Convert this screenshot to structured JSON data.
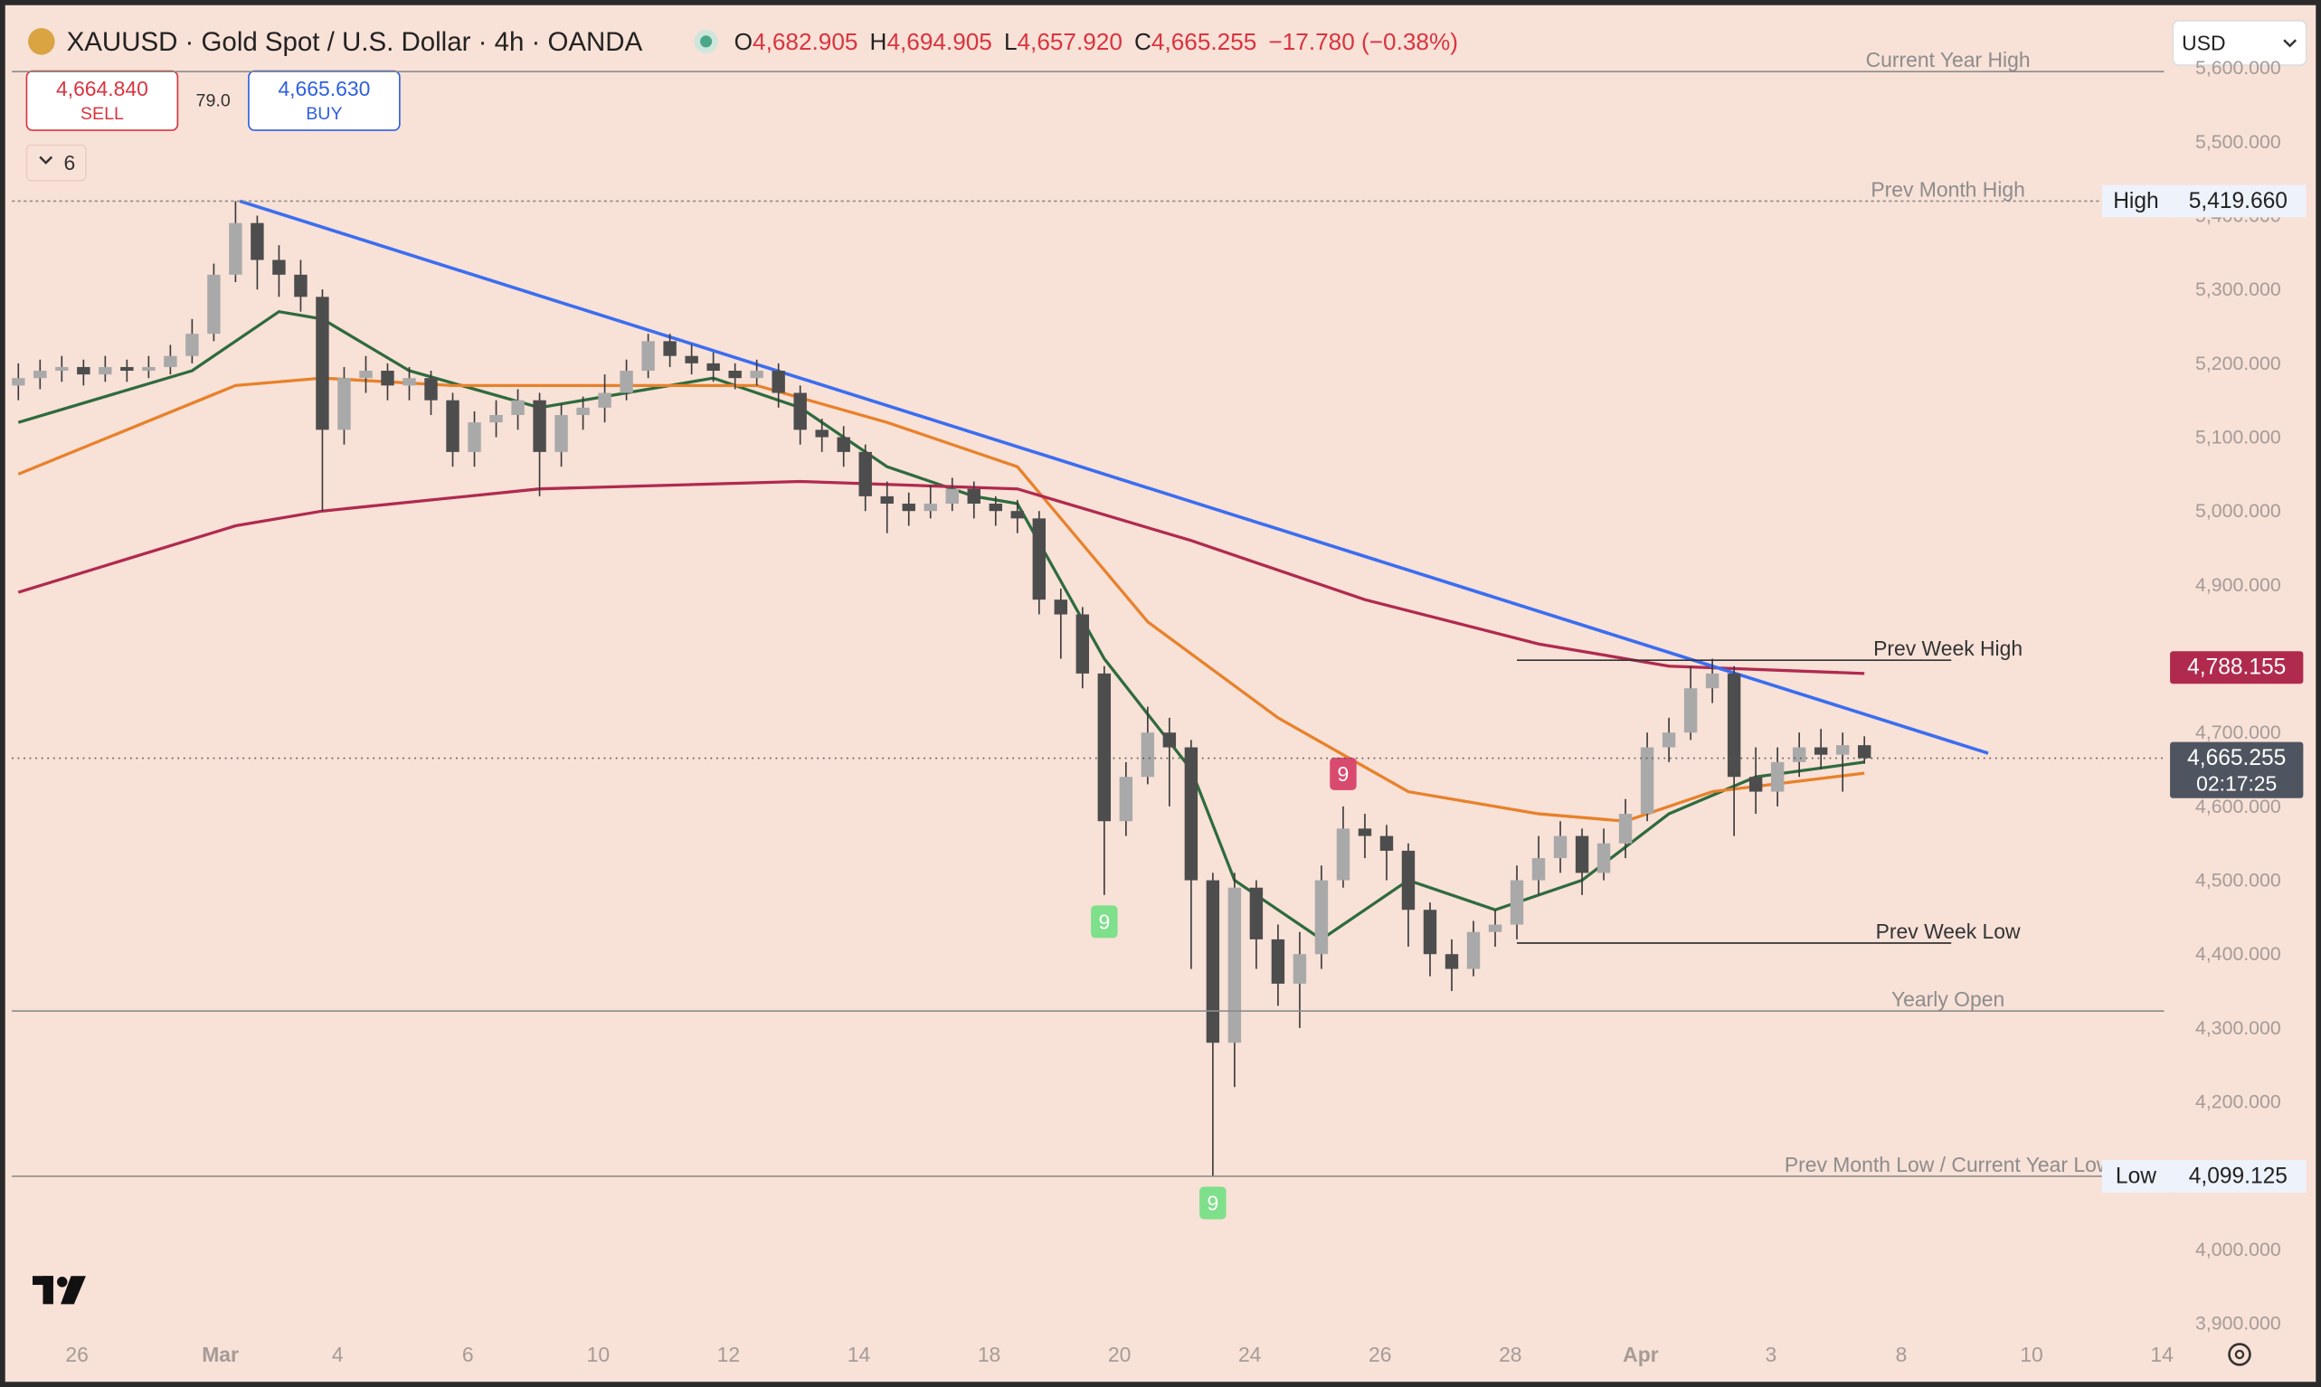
{
  "header": {
    "symbol": "XAUUSD · Gold Spot / U.S. Dollar · 4h · OANDA",
    "ohlc": [
      {
        "key": "O",
        "value": "4,682.905"
      },
      {
        "key": "H",
        "value": "4,694.905"
      },
      {
        "key": "L",
        "value": "4,657.920"
      },
      {
        "key": "C",
        "value": "4,665.255"
      }
    ],
    "change": "−17.780 (−0.38%)"
  },
  "trade": {
    "sell_price": "4,664.840",
    "sell": "SELL",
    "spread": "79.0",
    "buy_price": "4,665.630",
    "buy": "BUY"
  },
  "indicators_count": "6",
  "currency": "USD",
  "chart_data": {
    "type": "candlestick",
    "up_color": "#a9a9a9",
    "down_color": "#4d4d4d",
    "background": "#f8e1d7",
    "open": [
      5170,
      5180,
      5190,
      5195,
      5185,
      5195,
      5190,
      5195,
      5210,
      5240,
      5320,
      5390,
      5340,
      5320,
      5290,
      5110,
      5180,
      5190,
      5170,
      5180,
      5150,
      5080,
      5120,
      5130,
      5150,
      5080,
      5130,
      5140,
      5160,
      5190,
      5230,
      5210,
      5200,
      5190,
      5180,
      5190,
      5160,
      5110,
      5100,
      5080,
      5020,
      5010,
      5000,
      5010,
      5030,
      5010,
      5000,
      4990,
      4880,
      4860,
      4780,
      4580,
      4640,
      4700,
      4680,
      4500,
      4280,
      4490,
      4420,
      4360,
      4400,
      4500,
      4570,
      4560,
      4540,
      4460,
      4400,
      4380,
      4430,
      4440,
      4500,
      4530,
      4560,
      4510,
      4550,
      4590,
      4680,
      4700,
      4760,
      4780,
      4640,
      4620,
      4660,
      4680,
      4670,
      4682.905
    ],
    "high": [
      5200,
      5205,
      5210,
      5205,
      5210,
      5205,
      5210,
      5225,
      5260,
      5335,
      5419.66,
      5400,
      5360,
      5340,
      5300,
      5195,
      5210,
      5200,
      5195,
      5190,
      5160,
      5135,
      5150,
      5165,
      5160,
      5145,
      5155,
      5185,
      5205,
      5240,
      5240,
      5225,
      5215,
      5200,
      5205,
      5200,
      5170,
      5125,
      5115,
      5090,
      5040,
      5025,
      5035,
      5045,
      5040,
      5020,
      5015,
      5000,
      4895,
      4870,
      4790,
      4660,
      4735,
      4720,
      4690,
      4510,
      4510,
      4500,
      4440,
      4430,
      4520,
      4600,
      4590,
      4575,
      4550,
      4470,
      4420,
      4445,
      4460,
      4520,
      4560,
      4580,
      4570,
      4570,
      4610,
      4700,
      4720,
      4790,
      4800,
      4790,
      4680,
      4680,
      4700,
      4705,
      4700,
      4694.905
    ],
    "low": [
      5150,
      5165,
      5175,
      5170,
      5175,
      5175,
      5180,
      5185,
      5200,
      5230,
      5310,
      5300,
      5290,
      5270,
      5000,
      5090,
      5160,
      5150,
      5150,
      5130,
      5060,
      5060,
      5100,
      5110,
      5020,
      5060,
      5110,
      5120,
      5150,
      5180,
      5195,
      5185,
      5175,
      5165,
      5170,
      5140,
      5090,
      5080,
      5060,
      5000,
      4970,
      4980,
      4990,
      5000,
      4990,
      4980,
      4970,
      4860,
      4800,
      4760,
      4480,
      4560,
      4630,
      4600,
      4380,
      4099.125,
      4220,
      4380,
      4330,
      4300,
      4380,
      4490,
      4530,
      4500,
      4410,
      4370,
      4350,
      4370,
      4410,
      4420,
      4480,
      4510,
      4480,
      4500,
      4530,
      4580,
      4660,
      4690,
      4740,
      4560,
      4590,
      4600,
      4640,
      4650,
      4620,
      4657.92
    ],
    "close": [
      5180,
      5190,
      5195,
      5185,
      5195,
      5190,
      5195,
      5210,
      5240,
      5320,
      5390,
      5340,
      5320,
      5290,
      5110,
      5180,
      5190,
      5170,
      5180,
      5150,
      5080,
      5120,
      5130,
      5150,
      5080,
      5130,
      5140,
      5160,
      5190,
      5230,
      5210,
      5200,
      5190,
      5180,
      5190,
      5160,
      5110,
      5100,
      5080,
      5020,
      5010,
      5000,
      5010,
      5030,
      5010,
      5000,
      4990,
      4880,
      4860,
      4780,
      4580,
      4640,
      4700,
      4680,
      4500,
      4280,
      4490,
      4420,
      4360,
      4400,
      4500,
      4570,
      4560,
      4540,
      4460,
      4400,
      4380,
      4430,
      4440,
      4500,
      4530,
      4560,
      4510,
      4550,
      4590,
      4680,
      4700,
      4760,
      4780,
      4640,
      4620,
      4660,
      4680,
      4670,
      4683,
      4665.255
    ],
    "lines": [
      {
        "color": "#2e6b3e",
        "x": [
          0,
          8,
          12,
          14,
          18,
          24,
          28,
          32,
          36,
          40,
          44,
          46,
          50,
          54,
          56,
          60,
          64,
          68,
          72,
          76,
          80,
          85
        ],
        "values": [
          5120,
          5190,
          5270,
          5260,
          5190,
          5140,
          5160,
          5180,
          5140,
          5060,
          5020,
          5010,
          4800,
          4650,
          4500,
          4420,
          4500,
          4460,
          4500,
          4590,
          4640,
          4660
        ]
      },
      {
        "color": "#e8812a",
        "x": [
          0,
          10,
          14,
          20,
          28,
          34,
          40,
          46,
          52,
          58,
          64,
          70,
          74,
          78,
          85
        ],
        "values": [
          5050,
          5170,
          5180,
          5170,
          5170,
          5170,
          5120,
          5060,
          4850,
          4720,
          4620,
          4590,
          4580,
          4620,
          4645
        ]
      },
      {
        "color": "#b02a4e",
        "x": [
          0,
          10,
          14,
          24,
          36,
          46,
          54,
          62,
          70,
          76,
          85
        ],
        "values": [
          4890,
          4980,
          5000,
          5030,
          5040,
          5030,
          4960,
          4880,
          4820,
          4790,
          4780
        ]
      }
    ],
    "trendline": {
      "color": "#3b6ef0",
      "x": [
        10.2,
        90.7
      ],
      "values": [
        5419.66,
        4672
      ]
    },
    "levels": [
      {
        "name": "Current Year High",
        "value": 5595
      },
      {
        "name": "Prev Month High",
        "value": 5419.66
      },
      {
        "name": "Prev Week High",
        "value": 4798,
        "from": 69,
        "to": 89
      },
      {
        "name": "Prev Week Low",
        "value": 4415,
        "from": 69,
        "to": 89
      },
      {
        "name": "Yearly Open",
        "value": 4323
      },
      {
        "name": "Prev Month Low / Current Year Low",
        "value": 4099.125
      }
    ],
    "markers": [
      {
        "text": "9",
        "candle": 50,
        "side": "below",
        "color": "#7ee08a"
      },
      {
        "text": "9",
        "candle": 61,
        "side": "above",
        "color": "#d94a6f"
      },
      {
        "text": "9",
        "candle": 55,
        "side": "below",
        "color": "#7ee08a"
      }
    ],
    "price_tags": [
      {
        "label": "High",
        "value": 5419.66,
        "value_label": "5,419.660"
      },
      {
        "value": 4788.155,
        "value_label": "4,788.155",
        "color": "#b02a4e"
      },
      {
        "value": 4665.255,
        "value_label": "4,665.255",
        "countdown": "02:17:25",
        "color": "#4f5560"
      },
      {
        "label": "Low",
        "value": 4099.125,
        "value_label": "4,099.125"
      }
    ],
    "xlim": [
      -0.3,
      98.8
    ],
    "ylim": [
      3888,
      5692
    ],
    "xticks": [
      {
        "value": 2.7,
        "label": "26"
      },
      {
        "value": 9.3,
        "label": "Mar"
      },
      {
        "value": 14.7,
        "label": "4"
      },
      {
        "value": 20.7,
        "label": "6"
      },
      {
        "value": 26.7,
        "label": "10"
      },
      {
        "value": 32.7,
        "label": "12"
      },
      {
        "value": 38.7,
        "label": "14"
      },
      {
        "value": 44.7,
        "label": "18"
      },
      {
        "value": 50.7,
        "label": "20"
      },
      {
        "value": 56.7,
        "label": "24"
      },
      {
        "value": 62.7,
        "label": "26"
      },
      {
        "value": 68.7,
        "label": "28"
      },
      {
        "value": 74.7,
        "label": "Apr"
      },
      {
        "value": 80.7,
        "label": "3"
      },
      {
        "value": 86.7,
        "label": "8"
      },
      {
        "value": 92.7,
        "label": "10"
      },
      {
        "value": 98.7,
        "label": "14"
      }
    ],
    "yticks": [
      {
        "value": 3900,
        "label": "3,900.000"
      },
      {
        "value": 4000,
        "label": "4,000.000"
      },
      {
        "value": 4100,
        "label": "4,100.000"
      },
      {
        "value": 4200,
        "label": "4,200.000"
      },
      {
        "value": 4300,
        "label": "4,300.000"
      },
      {
        "value": 4400,
        "label": "4,400.000"
      },
      {
        "value": 4500,
        "label": "4,500.000"
      },
      {
        "value": 4600,
        "label": "4,600.000"
      },
      {
        "value": 4700,
        "label": "4,700.000"
      },
      {
        "value": 4800,
        "label": "4,800.000"
      },
      {
        "value": 4900,
        "label": "4,900.000"
      },
      {
        "value": 5000,
        "label": "5,000.000"
      },
      {
        "value": 5100,
        "label": "5,100.000"
      },
      {
        "value": 5200,
        "label": "5,200.000"
      },
      {
        "value": 5300,
        "label": "5,300.000"
      },
      {
        "value": 5400,
        "label": "5,400.000"
      },
      {
        "value": 5500,
        "label": "5,500.000"
      },
      {
        "value": 5600,
        "label": "5,600.000"
      }
    ]
  }
}
